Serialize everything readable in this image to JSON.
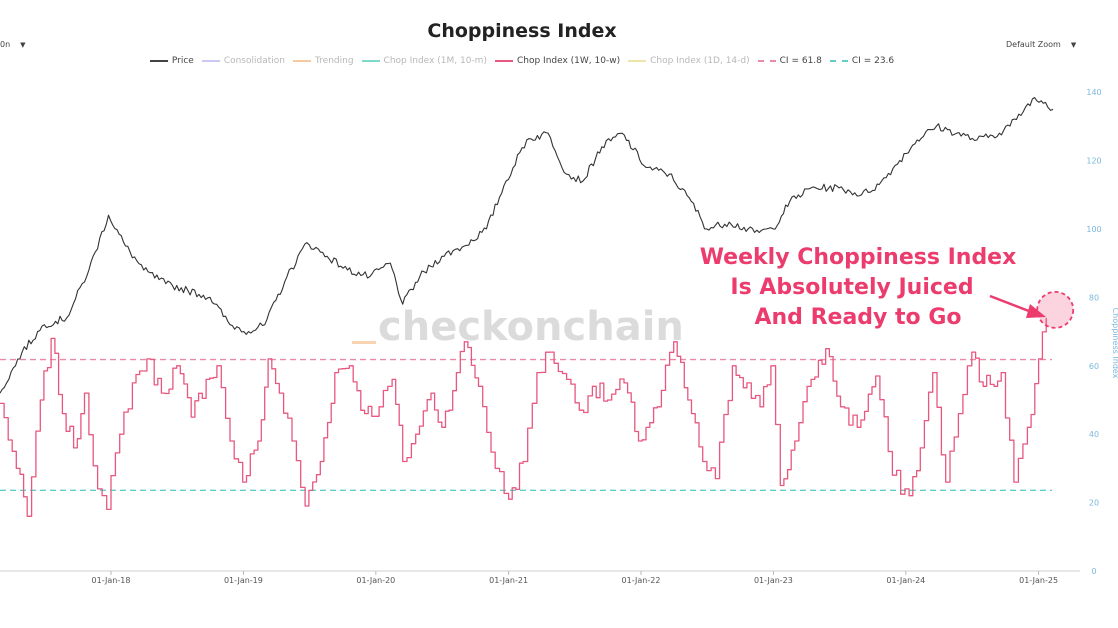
{
  "header": {
    "title": "Choppiness Index",
    "left_control": "0n",
    "zoom_label": "Default Zoom"
  },
  "legend": [
    {
      "label": "Price",
      "color": "#444444",
      "style": "solid"
    },
    {
      "label": "Consolidation",
      "color": "#c9c9f2",
      "style": "solid"
    },
    {
      "label": "Trending",
      "color": "#f6c9a0",
      "style": "solid"
    },
    {
      "label": "Chop Index (1M, 10-m)",
      "color": "#7ed9c9",
      "style": "solid"
    },
    {
      "label": "Chop Index (1W, 10-w)",
      "color": "#e8577f",
      "style": "solid"
    },
    {
      "label": "Chop Index (1D, 14-d)",
      "color": "#ece4a8",
      "style": "solid"
    },
    {
      "label": "CI = 61.8",
      "color": "#e98aa6",
      "style": "dashed"
    },
    {
      "label": "CI = 23.6",
      "color": "#5fd0c8",
      "style": "dashed"
    }
  ],
  "watermark": "checkonchain",
  "annotation": {
    "lines": [
      "Weekly Choppiness Index",
      "Is Absolutely Juiced",
      "And Ready to Go"
    ],
    "color": "#ec3c6e"
  },
  "chart_data": {
    "type": "line",
    "x_tick_labels": [
      "01-Jan-18",
      "01-Jan-19",
      "01-Jan-20",
      "01-Jan-21",
      "01-Jan-22",
      "01-Jan-23",
      "01-Jan-24",
      "01-Jan-25"
    ],
    "y_right_label": "Choppiness Index",
    "y_right_ticks": [
      0,
      20,
      40,
      60,
      80,
      100,
      120,
      140
    ],
    "y_right_range": [
      0,
      145
    ],
    "x_range": [
      "2017-03-01",
      "2025-03-01"
    ],
    "reference_lines": [
      {
        "name": "CI = 61.8",
        "value": 61.8,
        "color": "#e98aa6"
      },
      {
        "name": "CI = 23.6",
        "value": 23.6,
        "color": "#5fd0c8"
      }
    ],
    "series": [
      {
        "name": "Chop Index (1W, 10-w)",
        "color": "#e8577f",
        "points": [
          [
            "2017-03-01",
            49
          ],
          [
            "2017-04-15",
            30
          ],
          [
            "2017-05-15",
            16
          ],
          [
            "2017-06-20",
            50
          ],
          [
            "2017-07-20",
            68
          ],
          [
            "2017-08-20",
            46
          ],
          [
            "2017-09-20",
            36
          ],
          [
            "2017-10-20",
            52
          ],
          [
            "2017-11-25",
            24
          ],
          [
            "2017-12-20",
            18
          ],
          [
            "2018-01-25",
            40
          ],
          [
            "2018-03-01",
            55
          ],
          [
            "2018-04-10",
            62
          ],
          [
            "2018-05-20",
            52
          ],
          [
            "2018-07-01",
            60
          ],
          [
            "2018-08-10",
            45
          ],
          [
            "2018-09-20",
            56
          ],
          [
            "2018-10-20",
            60
          ],
          [
            "2018-11-25",
            38
          ],
          [
            "2018-12-30",
            26
          ],
          [
            "2019-02-10",
            38
          ],
          [
            "2019-03-10",
            62
          ],
          [
            "2019-04-10",
            52
          ],
          [
            "2019-05-15",
            38
          ],
          [
            "2019-06-20",
            19
          ],
          [
            "2019-08-01",
            32
          ],
          [
            "2019-09-10",
            58
          ],
          [
            "2019-10-20",
            60
          ],
          [
            "2019-12-01",
            46
          ],
          [
            "2020-01-10",
            48
          ],
          [
            "2020-02-15",
            56
          ],
          [
            "2020-03-15",
            32
          ],
          [
            "2020-04-20",
            40
          ],
          [
            "2020-06-01",
            52
          ],
          [
            "2020-07-01",
            42
          ],
          [
            "2020-08-10",
            58
          ],
          [
            "2020-09-01",
            67
          ],
          [
            "2020-10-10",
            54
          ],
          [
            "2020-11-25",
            30
          ],
          [
            "2021-01-01",
            21
          ],
          [
            "2021-02-10",
            32
          ],
          [
            "2021-03-20",
            58
          ],
          [
            "2021-04-25",
            64
          ],
          [
            "2021-06-10",
            56
          ],
          [
            "2021-07-15",
            47
          ],
          [
            "2021-08-20",
            54
          ],
          [
            "2021-10-01",
            50
          ],
          [
            "2021-11-15",
            55
          ],
          [
            "2021-12-25",
            38
          ],
          [
            "2022-02-15",
            48
          ],
          [
            "2022-04-01",
            67
          ],
          [
            "2022-05-10",
            50
          ],
          [
            "2022-06-20",
            32
          ],
          [
            "2022-07-25",
            27
          ],
          [
            "2022-09-10",
            60
          ],
          [
            "2022-10-20",
            55
          ],
          [
            "2022-11-25",
            48
          ],
          [
            "2022-12-25",
            60
          ],
          [
            "2023-01-20",
            25
          ],
          [
            "2023-03-01",
            38
          ],
          [
            "2023-04-15",
            56
          ],
          [
            "2023-05-25",
            65
          ],
          [
            "2023-07-05",
            48
          ],
          [
            "2023-08-20",
            42
          ],
          [
            "2023-10-10",
            57
          ],
          [
            "2023-11-25",
            28
          ],
          [
            "2024-01-10",
            22
          ],
          [
            "2024-02-10",
            36
          ],
          [
            "2024-03-15",
            58
          ],
          [
            "2024-04-20",
            26
          ],
          [
            "2024-05-25",
            46
          ],
          [
            "2024-07-01",
            64
          ],
          [
            "2024-08-01",
            54
          ],
          [
            "2024-09-20",
            58
          ],
          [
            "2024-10-25",
            26
          ],
          [
            "2024-12-01",
            42
          ],
          [
            "2025-01-01",
            62
          ],
          [
            "2025-01-22",
            74
          ]
        ]
      },
      {
        "name": "Price",
        "color": "#333333",
        "points": [
          [
            "2017-03-01",
            52
          ],
          [
            "2017-05-01",
            64
          ],
          [
            "2017-07-01",
            72
          ],
          [
            "2017-09-01",
            74
          ],
          [
            "2017-11-01",
            88
          ],
          [
            "2017-12-25",
            104
          ],
          [
            "2018-02-10",
            95
          ],
          [
            "2018-04-01",
            88
          ],
          [
            "2018-06-01",
            84
          ],
          [
            "2018-08-01",
            82
          ],
          [
            "2018-10-01",
            80
          ],
          [
            "2018-11-25",
            72
          ],
          [
            "2019-01-15",
            70
          ],
          [
            "2019-03-01",
            72
          ],
          [
            "2019-05-01",
            86
          ],
          [
            "2019-06-25",
            96
          ],
          [
            "2019-08-20",
            92
          ],
          [
            "2019-10-15",
            88
          ],
          [
            "2019-12-15",
            86
          ],
          [
            "2020-02-10",
            90
          ],
          [
            "2020-03-15",
            78
          ],
          [
            "2020-05-01",
            86
          ],
          [
            "2020-07-01",
            92
          ],
          [
            "2020-09-01",
            95
          ],
          [
            "2020-11-01",
            100
          ],
          [
            "2020-12-25",
            114
          ],
          [
            "2021-02-20",
            126
          ],
          [
            "2021-04-20",
            128
          ],
          [
            "2021-06-10",
            116
          ],
          [
            "2021-07-25",
            114
          ],
          [
            "2021-09-15",
            124
          ],
          [
            "2021-11-10",
            128
          ],
          [
            "2022-01-15",
            118
          ],
          [
            "2022-03-20",
            116
          ],
          [
            "2022-05-20",
            108
          ],
          [
            "2022-07-01",
            100
          ],
          [
            "2022-09-01",
            102
          ],
          [
            "2022-11-10",
            99
          ],
          [
            "2022-12-31",
            100
          ],
          [
            "2023-02-15",
            108
          ],
          [
            "2023-04-15",
            112
          ],
          [
            "2023-07-01",
            112
          ],
          [
            "2023-09-01",
            110
          ],
          [
            "2023-10-20",
            113
          ],
          [
            "2023-12-15",
            120
          ],
          [
            "2024-02-01",
            126
          ],
          [
            "2024-03-25",
            130
          ],
          [
            "2024-05-20",
            128
          ],
          [
            "2024-07-15",
            126
          ],
          [
            "2024-09-15",
            128
          ],
          [
            "2024-11-01",
            132
          ],
          [
            "2024-12-15",
            138
          ],
          [
            "2025-01-20",
            137
          ],
          [
            "2025-02-10",
            135
          ]
        ]
      }
    ],
    "grid": false
  }
}
